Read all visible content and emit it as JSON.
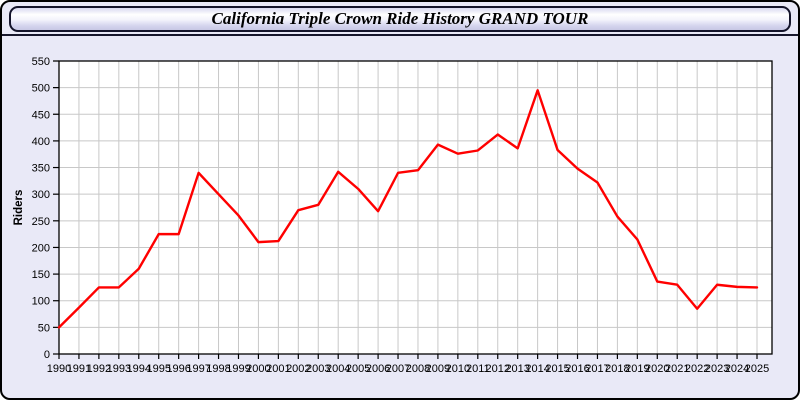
{
  "header": {
    "title": "California Triple Crown Ride History GRAND TOUR"
  },
  "chart_data": {
    "type": "line",
    "title": "California Triple Crown Ride History GRAND TOUR",
    "xlabel": "",
    "ylabel": "Riders",
    "x": [
      1990,
      1991,
      1992,
      1993,
      1994,
      1995,
      1996,
      1997,
      1998,
      1999,
      2000,
      2001,
      2002,
      2003,
      2004,
      2005,
      2006,
      2007,
      2008,
      2009,
      2010,
      2011,
      2012,
      2013,
      2014,
      2015,
      2016,
      2017,
      2018,
      2019,
      2020,
      2021,
      2022,
      2023,
      2024,
      2025
    ],
    "series": [
      {
        "name": "Riders",
        "color": "#ff0000",
        "values": [
          50,
          87,
          125,
          125,
          160,
          225,
          225,
          340,
          300,
          260,
          210,
          212,
          270,
          280,
          342,
          310,
          268,
          340,
          345,
          393,
          376,
          382,
          412,
          386,
          495,
          383,
          348,
          322,
          258,
          215,
          136,
          130,
          85,
          130,
          126,
          125
        ]
      }
    ],
    "ylim": [
      0,
      550
    ],
    "yticks": [
      0,
      50,
      100,
      150,
      200,
      250,
      300,
      350,
      400,
      450,
      500,
      550
    ],
    "xticks": [
      1990,
      1991,
      1992,
      1993,
      1994,
      1995,
      1996,
      1997,
      1998,
      1999,
      2000,
      2001,
      2002,
      2003,
      2004,
      2005,
      2006,
      2007,
      2008,
      2009,
      2010,
      2011,
      2012,
      2013,
      2014,
      2015,
      2016,
      2017,
      2018,
      2019,
      2020,
      2021,
      2022,
      2023,
      2024,
      2025
    ],
    "grid": true,
    "legend_position": "none",
    "style": {
      "plot_bg": "#ffffff",
      "page_bg": "#e9e9f7",
      "grid_color": "#c8c8c8",
      "frame_color": "#000000",
      "tick_label_color": "#000000",
      "line_width": 2.4
    }
  }
}
